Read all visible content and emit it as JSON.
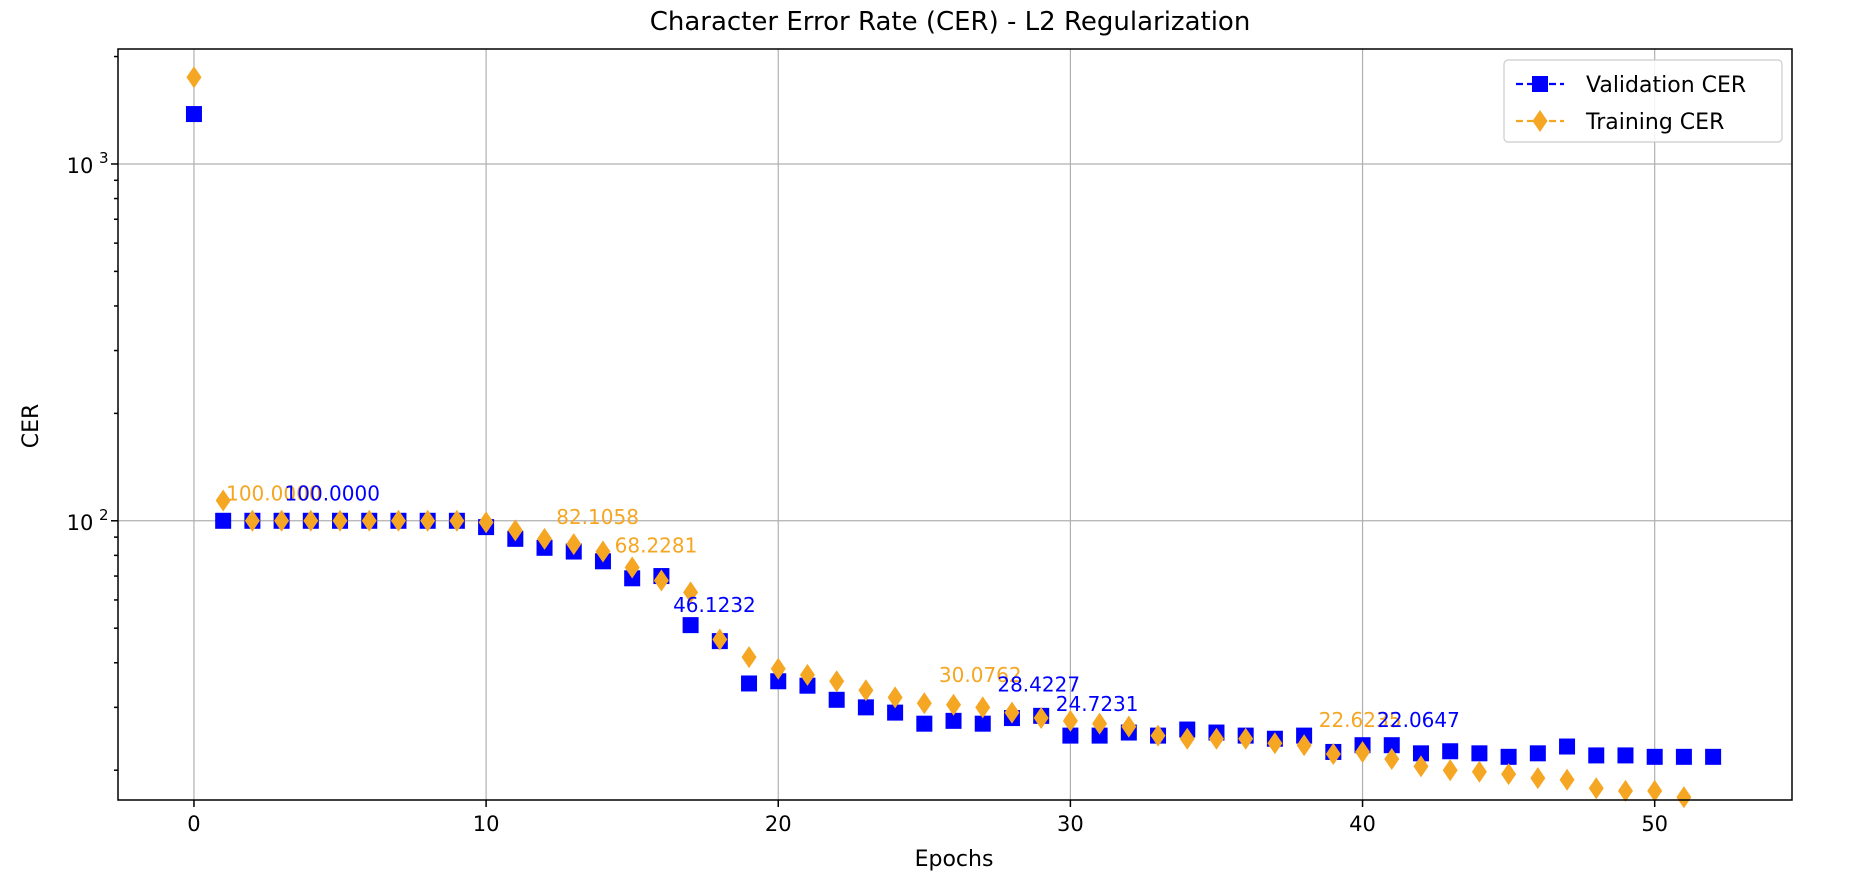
{
  "chart_data": {
    "type": "scatter",
    "title": "Character Error Rate (CER) - L2 Regularization",
    "xlabel": "Epochs",
    "ylabel": "CER",
    "xlim": [
      -2.6,
      54.7
    ],
    "ylim": [
      16.5,
      2100
    ],
    "yscale": "log",
    "grid": true,
    "legend_position": "top-right",
    "x_ticks": [
      0,
      10,
      20,
      30,
      40,
      50
    ],
    "x_tick_labels": [
      "0",
      "10",
      "20",
      "30",
      "40",
      "50"
    ],
    "y_major_ticks": [
      100,
      1000
    ],
    "y_tick_labels": [
      "10",
      "10"
    ],
    "y_tick_exponents": [
      "2",
      "3"
    ],
    "series": [
      {
        "name": "Validation CER",
        "color": "#0000ff",
        "marker": "square",
        "x": [
          0,
          1,
          2,
          3,
          4,
          5,
          6,
          7,
          8,
          9,
          10,
          11,
          12,
          13,
          14,
          15,
          16,
          17,
          18,
          19,
          20,
          21,
          22,
          23,
          24,
          25,
          26,
          27,
          28,
          29,
          30,
          31,
          32,
          33,
          34,
          35,
          36,
          37,
          38,
          39,
          40,
          41,
          42,
          43,
          44,
          45,
          46,
          47,
          48,
          49,
          50,
          51,
          52
        ],
        "values": [
          1380,
          100,
          100,
          100,
          100,
          100,
          100,
          100,
          100,
          100,
          96,
          89,
          84,
          82,
          77,
          69,
          70,
          51,
          46,
          35,
          35.5,
          34.5,
          31.5,
          30,
          29,
          27,
          27.5,
          27,
          28,
          28.4,
          25,
          25,
          25.5,
          25,
          26,
          25.5,
          25,
          24.5,
          25,
          22.5,
          23.5,
          23.5,
          22.3,
          22.6,
          22.3,
          21.8,
          22.3,
          23.3,
          22,
          22,
          21.8,
          21.8,
          21.8
        ]
      },
      {
        "name": "Training CER",
        "color": "#f5a623",
        "marker": "diamond",
        "x": [
          0,
          1,
          2,
          3,
          4,
          5,
          6,
          7,
          8,
          9,
          10,
          11,
          12,
          13,
          14,
          15,
          16,
          17,
          18,
          19,
          20,
          21,
          22,
          23,
          24,
          25,
          26,
          27,
          28,
          29,
          30,
          31,
          32,
          33,
          34,
          35,
          36,
          37,
          38,
          39,
          40,
          41,
          42,
          43,
          44,
          45,
          46,
          47,
          48,
          49,
          50,
          51
        ],
        "values": [
          1750,
          114,
          100,
          100,
          100,
          100,
          100,
          100,
          100,
          100,
          99,
          94,
          89,
          86,
          82,
          74,
          68,
          63,
          46.5,
          41.5,
          38.5,
          37,
          35.5,
          33.5,
          32,
          30.8,
          30.5,
          30,
          29,
          28,
          27.5,
          27,
          26.5,
          25,
          24.5,
          24.5,
          24.5,
          23.8,
          23.5,
          22.2,
          22.5,
          21.5,
          20.5,
          20,
          19.8,
          19.5,
          19,
          18.8,
          17.8,
          17.5,
          17.5,
          16.8
        ]
      }
    ],
    "annotations": [
      {
        "text": "100.0000",
        "x": 1.1,
        "y": 114,
        "color": "#f5a623"
      },
      {
        "text": "100.0000",
        "x": 3.1,
        "y": 114,
        "color": "#0000ff"
      },
      {
        "text": "82.1058",
        "x": 12.4,
        "y": 98,
        "color": "#f5a623"
      },
      {
        "text": "68.2281",
        "x": 14.4,
        "y": 81.5,
        "color": "#f5a623"
      },
      {
        "text": "46.1232",
        "x": 16.4,
        "y": 55.5,
        "color": "#0000ff"
      },
      {
        "text": "30.0762",
        "x": 25.5,
        "y": 35.3,
        "color": "#f5a623"
      },
      {
        "text": "28.4227",
        "x": 27.5,
        "y": 33.2,
        "color": "#0000ff"
      },
      {
        "text": "24.7231",
        "x": 29.5,
        "y": 29.3,
        "color": "#0000ff"
      },
      {
        "text": "22.6235",
        "x": 38.5,
        "y": 26.4,
        "color": "#f5a623"
      },
      {
        "text": "22.0647",
        "x": 40.5,
        "y": 26.4,
        "color": "#0000ff"
      }
    ]
  }
}
